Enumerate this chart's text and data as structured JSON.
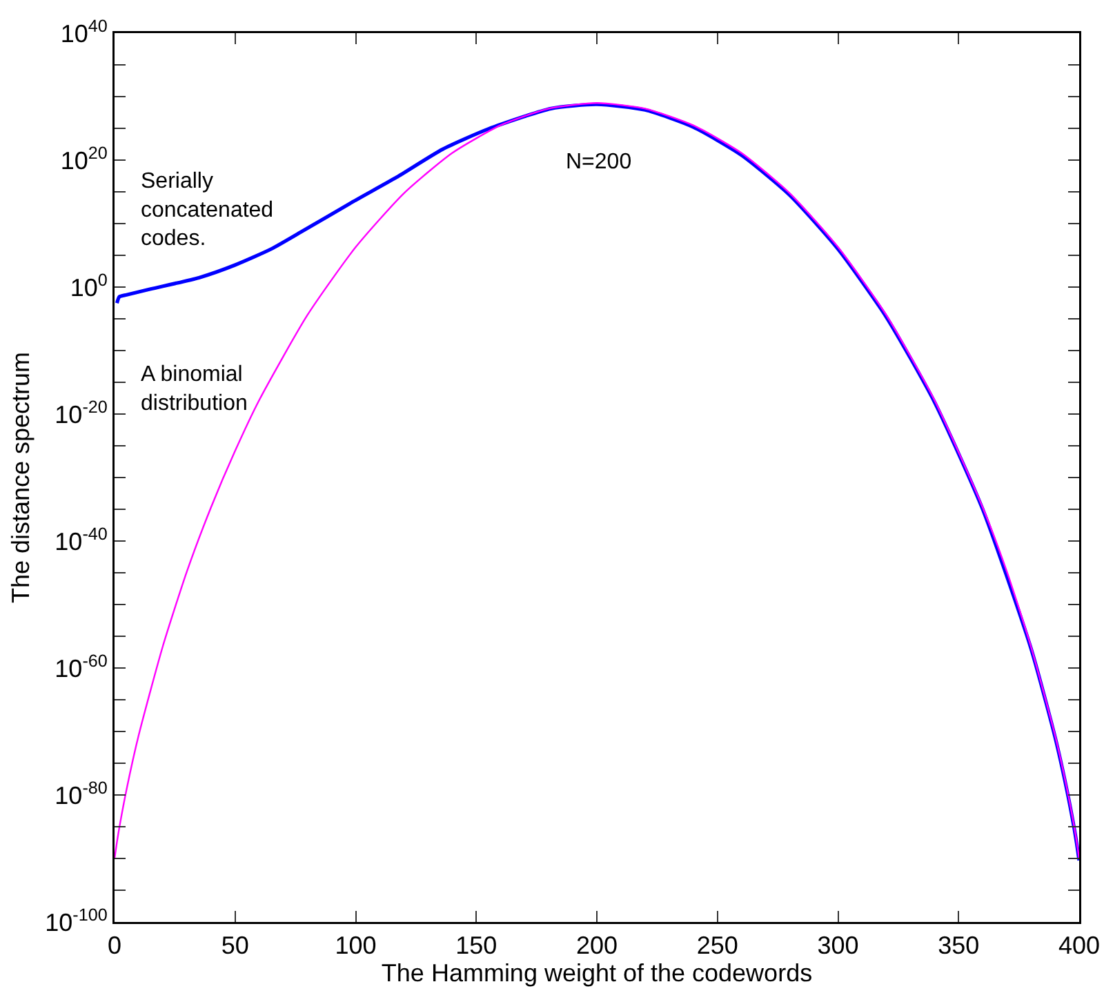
{
  "chart_data": {
    "type": "line",
    "xlabel": "The Hamming weight of the codewords",
    "ylabel": "The distance spectrum",
    "log": "y",
    "grid": false,
    "legend": false,
    "marker": "none",
    "line_style": "solid",
    "xlim": [
      0,
      400
    ],
    "xticks": [
      0,
      50,
      100,
      150,
      200,
      250,
      300,
      350,
      400
    ],
    "ylim": [
      1e-100,
      1e+40
    ],
    "yticks": [
      {
        "value": 1e-100,
        "label": "10$^{-100}$"
      },
      {
        "value": 1e-95,
        "label": null
      },
      {
        "value": 1e-90,
        "label": null
      },
      {
        "value": 1e-85,
        "label": null
      },
      {
        "value": 1e-80,
        "label": "10$^{-80}$"
      },
      {
        "value": 1e-75,
        "label": null
      },
      {
        "value": 1e-70,
        "label": null
      },
      {
        "value": 1e-65,
        "label": null
      },
      {
        "value": 1e-60,
        "label": "10$^{-60}$"
      },
      {
        "value": 1e-55,
        "label": null
      },
      {
        "value": 1e-50,
        "label": null
      },
      {
        "value": 1e-45,
        "label": null
      },
      {
        "value": 1e-40,
        "label": "10$^{-40}$"
      },
      {
        "value": 1e-35,
        "label": null
      },
      {
        "value": 1e-30,
        "label": null
      },
      {
        "value": 1e-25,
        "label": null
      },
      {
        "value": 1e-20,
        "label": "10$^{-20}$"
      },
      {
        "value": 1e-15,
        "label": null
      },
      {
        "value": 1e-10,
        "label": null
      },
      {
        "value": 1e-05,
        "label": null
      },
      {
        "value": 1,
        "label": "10$^{0}$"
      },
      {
        "value": 100000.0,
        "label": null
      },
      {
        "value": 10000000000.0,
        "label": null
      },
      {
        "value": 1000000000000000.0,
        "label": null
      },
      {
        "value": 1e+20,
        "label": "10$^{20}$"
      },
      {
        "value": 1e+25,
        "label": null
      },
      {
        "value": 1e+30,
        "label": null
      },
      {
        "value": 1e+35,
        "label": null
      },
      {
        "value": 1e+40,
        "label": "10$^{40}$"
      }
    ],
    "series": [
      {
        "name": "Serially concatenated codes.",
        "color": "#0000ff",
        "x": [
          1,
          2,
          5,
          15,
          35,
          50,
          65,
          77,
          99,
          117,
          136,
          155,
          181,
          200,
          220,
          240,
          260,
          280,
          300,
          320,
          340,
          360,
          380,
          390,
          395,
          398,
          399,
          400
        ],
        "values": [
          0.003,
          0.03,
          0.06,
          0.5,
          30.0,
          3000.0,
          1000000.0,
          400000000.0,
          30000000000000.0,
          2e+17,
          5e+21,
          8e+24,
          1.3e+28,
          6e+28,
          8e+27,
          1.6e+25,
          6e+20,
          300000000000000.0,
          1000000.0,
          2e-05,
          8e-19,
          1e-35,
          1.3e-57,
          1.3e-71,
          4e-80,
          4e-86,
          2e-88,
          5e-91
        ]
      },
      {
        "name": "A binomial distribution",
        "color": "#ff00ff",
        "x": [
          0,
          1,
          2,
          5,
          10,
          20,
          30,
          40,
          50,
          60,
          80,
          100,
          120,
          140,
          160,
          180,
          200,
          220,
          240,
          260,
          280,
          300,
          320,
          340,
          360,
          370,
          380,
          390,
          395,
          398,
          399,
          400
        ],
        "values": [
          1e-90,
          4e-88,
          8e-86,
          8e-80,
          2.5e-71,
          2.5e-57,
          1.6e-45,
          2e-35,
          1.6e-26,
          1.6e-18,
          4e-05,
          2000000.0,
          600000000000000.0,
          1.3e+21,
          3e+25,
          1.3e+28,
          1e+29,
          1.3e+28,
          3e+25,
          1.3e+21,
          600000000000000.0,
          2000000.0,
          4e-05,
          1.6e-18,
          2e-35,
          1.6e-45,
          2.5e-57,
          2.5e-71,
          8e-80,
          8e-86,
          4e-88,
          1e-90
        ]
      }
    ],
    "annotations": [
      "N=200"
    ]
  }
}
